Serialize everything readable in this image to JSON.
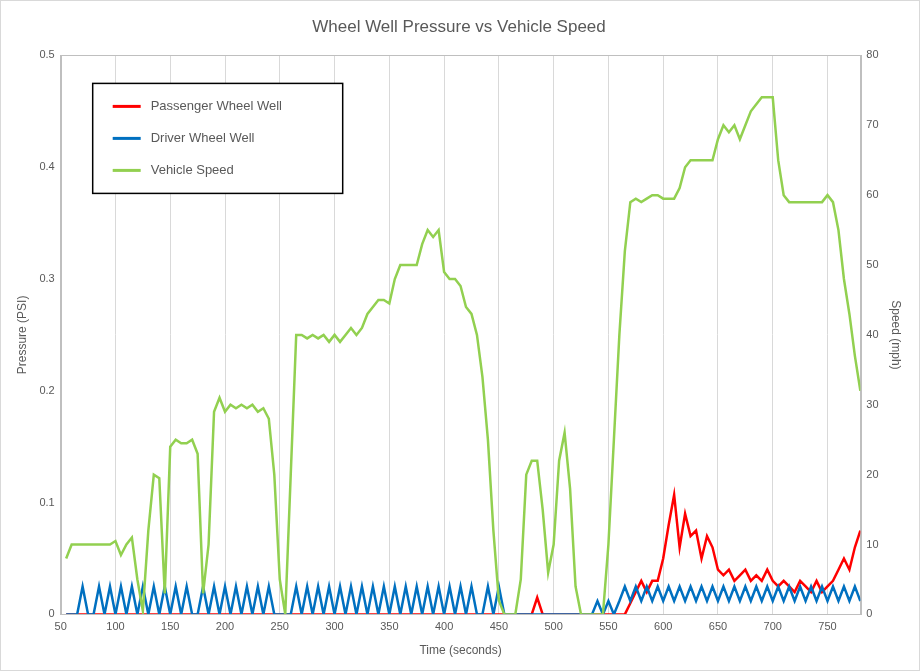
{
  "chart_data": {
    "type": "line",
    "title": "Wheel Well Pressure vs Vehicle Speed",
    "x_label": "Time (seconds)",
    "y_label": "Pressure (PSI)",
    "y2_label": "Speed (mph)",
    "xlim": [
      50,
      780
    ],
    "xticks": [
      50,
      100,
      150,
      200,
      250,
      300,
      350,
      400,
      450,
      500,
      550,
      600,
      650,
      700,
      750
    ],
    "ylim": [
      0,
      0.5
    ],
    "yticks": [
      0,
      0.1,
      0.2,
      0.3,
      0.4,
      0.5
    ],
    "y2lim": [
      0,
      80
    ],
    "y2ticks": [
      0,
      10,
      20,
      30,
      40,
      50,
      60,
      70,
      80
    ],
    "grid": "x",
    "legend": "upper left",
    "x": [
      55,
      60,
      65,
      70,
      75,
      80,
      85,
      90,
      95,
      100,
      105,
      110,
      115,
      120,
      125,
      130,
      135,
      140,
      145,
      150,
      155,
      160,
      165,
      170,
      175,
      180,
      185,
      190,
      195,
      200,
      205,
      210,
      215,
      220,
      225,
      230,
      235,
      240,
      245,
      250,
      255,
      260,
      265,
      270,
      275,
      280,
      285,
      290,
      295,
      300,
      305,
      310,
      315,
      320,
      325,
      330,
      335,
      340,
      345,
      350,
      355,
      360,
      365,
      370,
      375,
      380,
      385,
      390,
      395,
      400,
      405,
      410,
      415,
      420,
      425,
      430,
      435,
      440,
      445,
      450,
      455,
      460,
      465,
      470,
      475,
      480,
      485,
      490,
      495,
      500,
      505,
      510,
      515,
      520,
      525,
      530,
      535,
      540,
      545,
      550,
      555,
      560,
      565,
      570,
      575,
      580,
      585,
      590,
      595,
      600,
      605,
      610,
      615,
      620,
      625,
      630,
      635,
      640,
      645,
      650,
      655,
      660,
      665,
      670,
      675,
      680,
      685,
      690,
      695,
      700,
      705,
      710,
      715,
      720,
      725,
      730,
      735,
      740,
      745,
      750,
      755,
      760,
      765,
      770,
      775,
      780
    ],
    "series": [
      {
        "name": "Passenger Wheel Well",
        "color": "#ff0000",
        "values": [
          0,
          0,
          0,
          0,
          0,
          0,
          0,
          0,
          0,
          0,
          0,
          0,
          0,
          0,
          0,
          0,
          0,
          0,
          0,
          0,
          0,
          0,
          0,
          0,
          0,
          0,
          0,
          0,
          0,
          0,
          0,
          0,
          0,
          0,
          0,
          0,
          0,
          0,
          0,
          0,
          0,
          0,
          0,
          0,
          0,
          0,
          0,
          0,
          0,
          0,
          0,
          0,
          0,
          0,
          0,
          0,
          0,
          0,
          0,
          0,
          0,
          0,
          0,
          0,
          0,
          0,
          0,
          0,
          0,
          0,
          0,
          0,
          0,
          0,
          0,
          0,
          0,
          0,
          0,
          0,
          0,
          0,
          0,
          0,
          0,
          0,
          0.015,
          0,
          0,
          0,
          0,
          0,
          0,
          0,
          0,
          0,
          0,
          0,
          0,
          0,
          0,
          0,
          0,
          0.01,
          0.02,
          0.03,
          0.02,
          0.03,
          0.03,
          0.05,
          0.08,
          0.107,
          0.06,
          0.09,
          0.07,
          0.075,
          0.05,
          0.07,
          0.06,
          0.04,
          0.035,
          0.04,
          0.03,
          0.035,
          0.04,
          0.03,
          0.035,
          0.03,
          0.04,
          0.03,
          0.025,
          0.03,
          0.025,
          0.02,
          0.03,
          0.025,
          0.02,
          0.03,
          0.02,
          0.025,
          0.03,
          0.04,
          0.05,
          0.04,
          0.06,
          0.075
        ]
      },
      {
        "name": "Driver Wheel Well",
        "color": "#0070c0",
        "values": [
          0,
          0,
          0,
          0.025,
          0,
          0,
          0.025,
          0,
          0.025,
          0,
          0.025,
          0,
          0.025,
          0,
          0.025,
          0,
          0.025,
          0,
          0.025,
          0,
          0.025,
          0,
          0.025,
          0,
          0,
          0.025,
          0,
          0.025,
          0,
          0.025,
          0,
          0.025,
          0,
          0.025,
          0,
          0.025,
          0,
          0.025,
          0,
          0,
          0,
          0,
          0.025,
          0,
          0.025,
          0,
          0.025,
          0,
          0.025,
          0,
          0.025,
          0,
          0.025,
          0,
          0.025,
          0,
          0.025,
          0,
          0.025,
          0,
          0.025,
          0,
          0.025,
          0,
          0.025,
          0,
          0.025,
          0,
          0.025,
          0,
          0.025,
          0,
          0.025,
          0,
          0.025,
          0,
          0,
          0.025,
          0,
          0.025,
          0,
          0,
          0,
          0,
          0,
          0,
          0,
          0,
          0,
          0,
          0,
          0,
          0,
          0,
          0,
          0,
          0,
          0.012,
          0,
          0.012,
          0,
          0.012,
          0.025,
          0.012,
          0.025,
          0.012,
          0.025,
          0.012,
          0.025,
          0.012,
          0.025,
          0.012,
          0.025,
          0.012,
          0.025,
          0.012,
          0.025,
          0.012,
          0.025,
          0.012,
          0.025,
          0.012,
          0.025,
          0.012,
          0.025,
          0.012,
          0.025,
          0.012,
          0.025,
          0.012,
          0.025,
          0.012,
          0.025,
          0.012,
          0.025,
          0.012,
          0.025,
          0.012,
          0.025,
          0.012,
          0.025,
          0.012,
          0.025,
          0.012,
          0.025,
          0.012
        ]
      },
      {
        "name": "Vehicle Speed",
        "color": "#92d050",
        "axis": "y2",
        "values": [
          8,
          10,
          10,
          10,
          10,
          10,
          10,
          10,
          10,
          10.5,
          8.5,
          10,
          11,
          5,
          0.5,
          12,
          20,
          19.5,
          3,
          24,
          25,
          24.5,
          24.5,
          25,
          23,
          3,
          10,
          29,
          31,
          29,
          30,
          29.5,
          30,
          29.5,
          30,
          29,
          29.5,
          28,
          20,
          5,
          0,
          20,
          40,
          40,
          39.5,
          40,
          39.5,
          40,
          39,
          40,
          39,
          40,
          41,
          40,
          41,
          43,
          44,
          45,
          45,
          44.5,
          48,
          50,
          50,
          50,
          50,
          53,
          55,
          54,
          55,
          49,
          48,
          48,
          47,
          44,
          43,
          40,
          34,
          25,
          12,
          2,
          0,
          0,
          0,
          5,
          20,
          22,
          22,
          15,
          6,
          10,
          22,
          26,
          18,
          4,
          0,
          0,
          0,
          0,
          0,
          10,
          25,
          40,
          52,
          59,
          59.5,
          59,
          59.5,
          60,
          60,
          59.5,
          59.5,
          59.5,
          61,
          64,
          65,
          65,
          65,
          65,
          65,
          68,
          70,
          69,
          70,
          68,
          70,
          72,
          73,
          74,
          74,
          74,
          65,
          60,
          59,
          59,
          59,
          59,
          59,
          59,
          59,
          60,
          59,
          55,
          48,
          43,
          37,
          32
        ]
      }
    ]
  }
}
